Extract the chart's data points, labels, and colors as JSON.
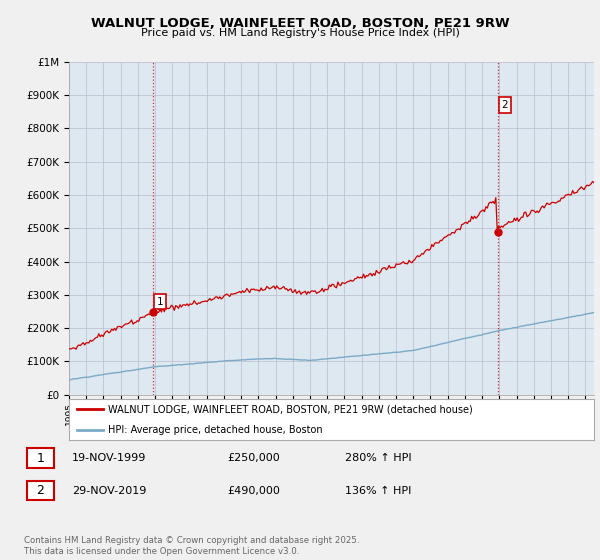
{
  "title": "WALNUT LODGE, WAINFLEET ROAD, BOSTON, PE21 9RW",
  "subtitle": "Price paid vs. HM Land Registry's House Price Index (HPI)",
  "property_label": "WALNUT LODGE, WAINFLEET ROAD, BOSTON, PE21 9RW (detached house)",
  "hpi_label": "HPI: Average price, detached house, Boston",
  "sale1_date": "19-NOV-1999",
  "sale1_price": 250000,
  "sale1_hpi": "280% ↑ HPI",
  "sale2_date": "29-NOV-2019",
  "sale2_price": 490000,
  "sale2_hpi": "136% ↑ HPI",
  "footnote": "Contains HM Land Registry data © Crown copyright and database right 2025.\nThis data is licensed under the Open Government Licence v3.0.",
  "background_color": "#f0f0f0",
  "plot_background": "#dde8f0",
  "grid_color": "#bbbbcc",
  "property_color": "#cc0000",
  "hpi_color": "#7aaac8",
  "ylim": [
    0,
    1000000
  ],
  "yticks": [
    0,
    100000,
    200000,
    300000,
    400000,
    500000,
    600000,
    700000,
    800000,
    900000,
    1000000
  ],
  "sale1_year": 1999.88,
  "sale2_year": 2019.91
}
